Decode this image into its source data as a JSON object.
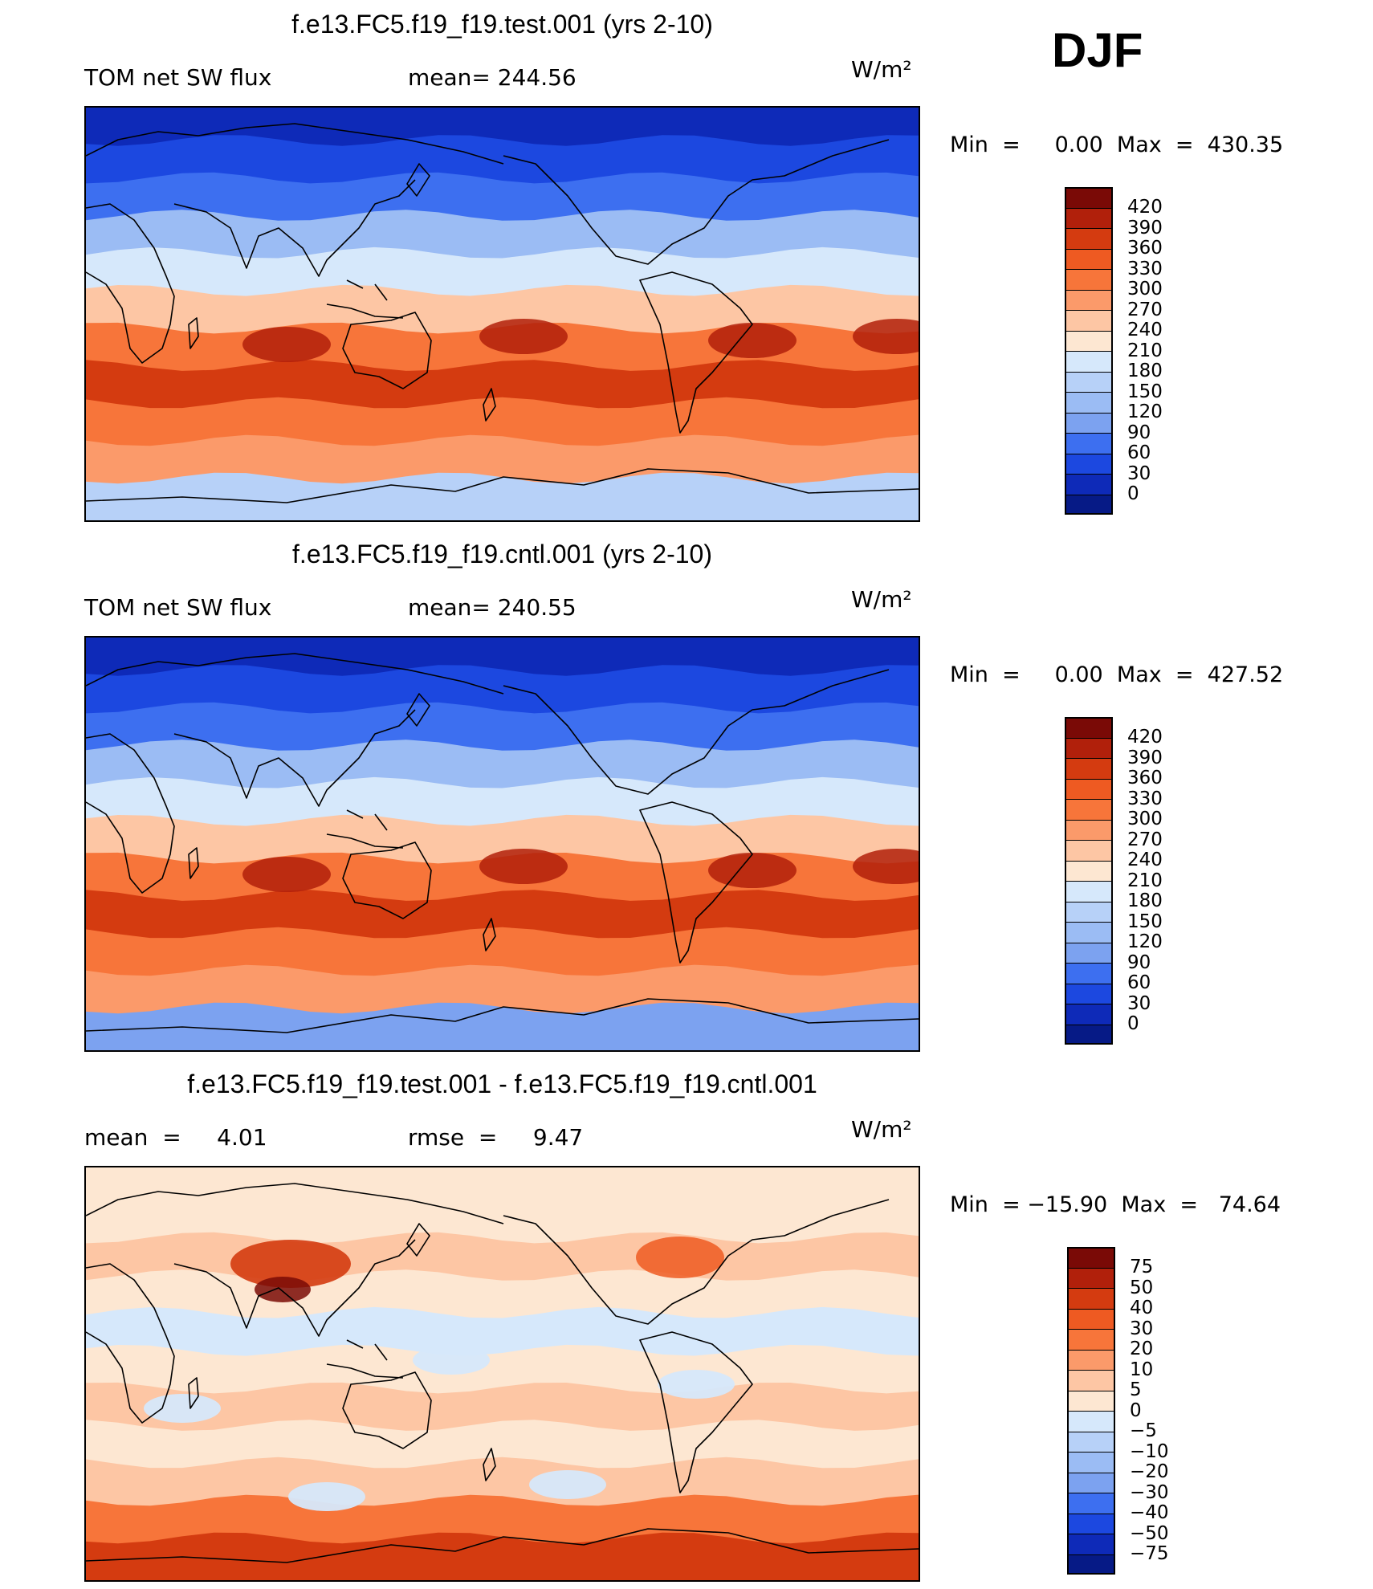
{
  "season": "DJF",
  "panels": [
    {
      "title": "f.e13.FC5.f19_f19.test.001 (yrs 2-10)",
      "left_label": "TOM net SW flux",
      "center_label": "mean=  244.56",
      "units": "W/m²",
      "minmax": "Min  =     0.00  Max  =  430.35",
      "field": "absolute",
      "colorbar": {
        "labels": [
          "420",
          "390",
          "360",
          "330",
          "300",
          "270",
          "240",
          "210",
          "180",
          "150",
          "120",
          "90",
          "60",
          "30",
          "0"
        ],
        "colors": [
          "#7a0a06",
          "#b1200b",
          "#d43b10",
          "#ee5a22",
          "#f7753a",
          "#fb9a6a",
          "#fdc6a4",
          "#fde7d2",
          "#d6e8fb",
          "#b7d1f8",
          "#9bbcf4",
          "#7ca2f0",
          "#3d6ff0",
          "#1c48e0",
          "#0e2ab8",
          "#061a86"
        ]
      },
      "zones": [
        "#0e2ab8",
        "#1c48e0",
        "#3d6ff0",
        "#9bbcf4",
        "#d6e8fb",
        "#fdc6a4",
        "#f7753a",
        "#d43b10",
        "#f7753a",
        "#fb9a6a",
        "#b7d1f8"
      ]
    },
    {
      "title": "f.e13.FC5.f19_f19.cntl.001 (yrs 2-10)",
      "left_label": "TOM net SW flux",
      "center_label": "mean=  240.55",
      "units": "W/m²",
      "minmax": "Min  =     0.00  Max  =  427.52",
      "field": "absolute",
      "colorbar": {
        "labels": [
          "420",
          "390",
          "360",
          "330",
          "300",
          "270",
          "240",
          "210",
          "180",
          "150",
          "120",
          "90",
          "60",
          "30",
          "0"
        ],
        "colors": [
          "#7a0a06",
          "#b1200b",
          "#d43b10",
          "#ee5a22",
          "#f7753a",
          "#fb9a6a",
          "#fdc6a4",
          "#fde7d2",
          "#d6e8fb",
          "#b7d1f8",
          "#9bbcf4",
          "#7ca2f0",
          "#3d6ff0",
          "#1c48e0",
          "#0e2ab8",
          "#061a86"
        ]
      },
      "zones": [
        "#0e2ab8",
        "#1c48e0",
        "#3d6ff0",
        "#9bbcf4",
        "#d6e8fb",
        "#fdc6a4",
        "#f7753a",
        "#d43b10",
        "#f7753a",
        "#fb9a6a",
        "#7ca2f0"
      ]
    },
    {
      "title": "f.e13.FC5.f19_f19.test.001 - f.e13.FC5.f19_f19.cntl.001",
      "left_label": "mean  =     4.01",
      "center_label": "rmse  =     9.47",
      "units": "W/m²",
      "minmax": "Min  = −15.90  Max  =   74.64",
      "field": "difference",
      "colorbar": {
        "labels": [
          "75",
          "50",
          "40",
          "30",
          "20",
          "10",
          "5",
          "0",
          "−5",
          "−10",
          "−20",
          "−30",
          "−40",
          "−50",
          "−75"
        ],
        "colors": [
          "#7a0a06",
          "#b1200b",
          "#d43b10",
          "#ee5a22",
          "#f7753a",
          "#fb9a6a",
          "#fdc6a4",
          "#fde7d2",
          "#d6e8fb",
          "#b7d1f8",
          "#9bbcf4",
          "#7ca2f0",
          "#3d6ff0",
          "#1c48e0",
          "#0e2ab8",
          "#061a86"
        ]
      },
      "zones": [
        "#fde7d2",
        "#fde7d2",
        "#fdc6a4",
        "#fde7d2",
        "#d6e8fb",
        "#fde7d2",
        "#fdc6a4",
        "#fde7d2",
        "#fdc6a4",
        "#f7753a",
        "#d43b10"
      ]
    }
  ]
}
